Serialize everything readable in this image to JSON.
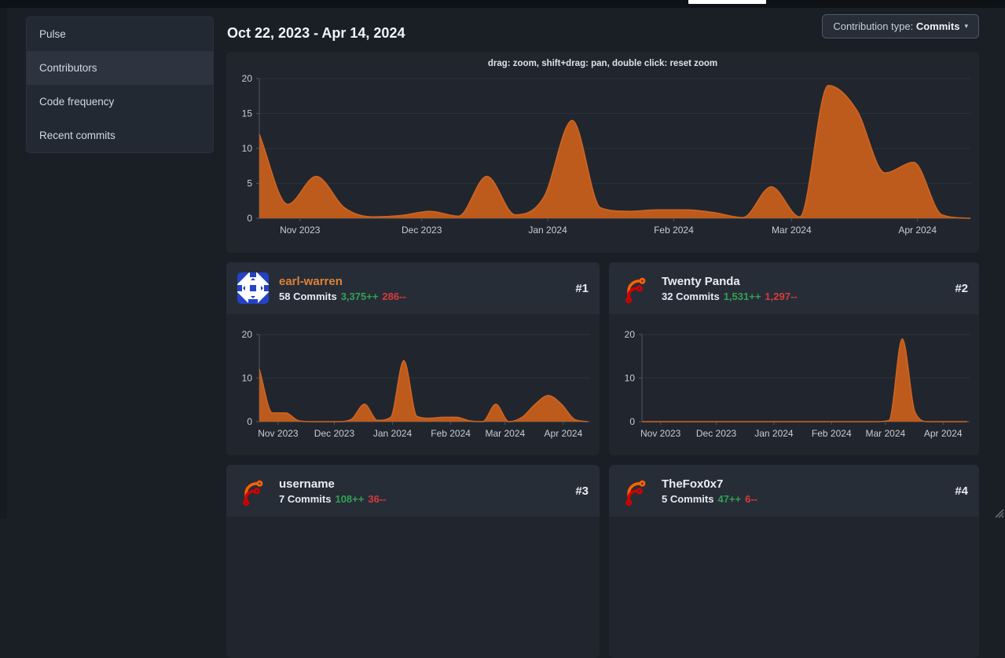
{
  "palette": {
    "page_bg": "#1a1f26",
    "panel_bg": "#21262e",
    "panel_header_bg": "#272d37",
    "sidebar_bg": "#232933",
    "sidebar_active_bg": "#2d3440",
    "chart_fill": "#bd5b1d",
    "chart_line": "#d06523",
    "grid_line": "#2b313b",
    "axis_line": "#4d5560",
    "axis_text": "#c6cdd5",
    "link_orange": "#dd8236",
    "additions_green": "#33a053",
    "deletions_red": "#d83b3b",
    "heading_text": "#f1f4f8"
  },
  "sidebar": {
    "items": [
      {
        "label": "Pulse",
        "active": false
      },
      {
        "label": "Contributors",
        "active": true
      },
      {
        "label": "Code frequency",
        "active": false
      },
      {
        "label": "Recent commits",
        "active": false
      }
    ]
  },
  "header": {
    "date_range": "Oct 22, 2023 - Apr 14, 2024",
    "contribution_type": {
      "label": "Contribution type: ",
      "value": "Commits",
      "caret": "▾"
    }
  },
  "main_chart": {
    "hint": "drag: zoom, shift+drag: pan, double click: reset zoom"
  },
  "contributors": [
    {
      "rank": "#1",
      "name": "earl-warren",
      "commits": "58 Commits",
      "additions": "3,375++",
      "deletions": "286--",
      "avatar": "identicon",
      "name_style": "link"
    },
    {
      "rank": "#2",
      "name": "Twenty Panda",
      "commits": "32 Commits",
      "additions": "1,531++",
      "deletions": "1,297--",
      "avatar": "forgejo-logo",
      "name_style": "plain"
    },
    {
      "rank": "#3",
      "name": "username",
      "commits": "7 Commits",
      "additions": "108++",
      "deletions": "36--",
      "avatar": "forgejo-logo",
      "name_style": "plain"
    },
    {
      "rank": "#4",
      "name": "TheFox0x7",
      "commits": "5 Commits",
      "additions": "47++",
      "deletions": "6--",
      "avatar": "forgejo-logo",
      "name_style": "plain"
    }
  ],
  "chart_data": [
    {
      "id": "overall-activity",
      "type": "area",
      "x_unit": "week",
      "x_start_label": "Oct 22, 2023",
      "x_end_label": "Apr 14, 2024",
      "values": [
        12,
        2,
        6,
        1.5,
        0.2,
        0.4,
        1,
        0.3,
        6,
        0.5,
        3,
        14,
        1.5,
        1,
        1.2,
        1.2,
        0.8,
        0.1,
        4.5,
        0.2,
        19,
        15.5,
        6.5,
        8,
        0.5,
        0
      ],
      "ylim": [
        0,
        20
      ],
      "yticks": [
        0,
        5,
        10,
        15,
        20
      ],
      "x_ticks": [
        {
          "label": "Nov 2023",
          "pos": 1.43
        },
        {
          "label": "Dec 2023",
          "pos": 5.71
        },
        {
          "label": "Jan 2024",
          "pos": 10.14
        },
        {
          "label": "Feb 2024",
          "pos": 14.57
        },
        {
          "label": "Mar 2024",
          "pos": 18.71
        },
        {
          "label": "Apr 2024",
          "pos": 23.14
        }
      ],
      "fill_color": "#bd5b1d",
      "line_color": "#d06523",
      "grid": true,
      "legend": "none"
    },
    {
      "id": "earl-warren-activity",
      "type": "area",
      "x_unit": "week",
      "x_start_label": "Oct 22, 2023",
      "x_end_label": "Apr 14, 2024",
      "values": [
        12,
        2,
        2,
        0.2,
        0,
        0,
        0,
        0.5,
        4,
        0.3,
        1,
        14,
        1.2,
        0.8,
        1,
        1,
        0.2,
        0,
        4,
        0,
        1,
        4,
        6,
        4,
        0.5,
        0
      ],
      "ylim": [
        0,
        20
      ],
      "yticks": [
        0,
        10,
        20
      ],
      "x_ticks": [
        {
          "label": "Nov 2023",
          "pos": 1.43
        },
        {
          "label": "Dec 2023",
          "pos": 5.71
        },
        {
          "label": "Jan 2024",
          "pos": 10.14
        },
        {
          "label": "Feb 2024",
          "pos": 14.57
        },
        {
          "label": "Mar 2024",
          "pos": 18.71
        },
        {
          "label": "Apr 2024",
          "pos": 23.14
        }
      ],
      "fill_color": "#bd5b1d",
      "line_color": "#d06523",
      "grid": true,
      "legend": "none"
    },
    {
      "id": "twenty-panda-activity",
      "type": "area",
      "x_unit": "week",
      "x_start_label": "Oct 22, 2023",
      "x_end_label": "Apr 14, 2024",
      "values": [
        0,
        0,
        0,
        0,
        0,
        0,
        0,
        0,
        0,
        0,
        0,
        0,
        0,
        0,
        0,
        0,
        0,
        0,
        0,
        0.3,
        19,
        2,
        0,
        0,
        0,
        0
      ],
      "ylim": [
        0,
        20
      ],
      "yticks": [
        0,
        10,
        20
      ],
      "x_ticks": [
        {
          "label": "Nov 2023",
          "pos": 1.43
        },
        {
          "label": "Dec 2023",
          "pos": 5.71
        },
        {
          "label": "Jan 2024",
          "pos": 10.14
        },
        {
          "label": "Feb 2024",
          "pos": 14.57
        },
        {
          "label": "Mar 2024",
          "pos": 18.71
        },
        {
          "label": "Apr 2024",
          "pos": 23.14
        }
      ],
      "fill_color": "#bd5b1d",
      "line_color": "#d06523",
      "grid": true,
      "legend": "none"
    }
  ]
}
